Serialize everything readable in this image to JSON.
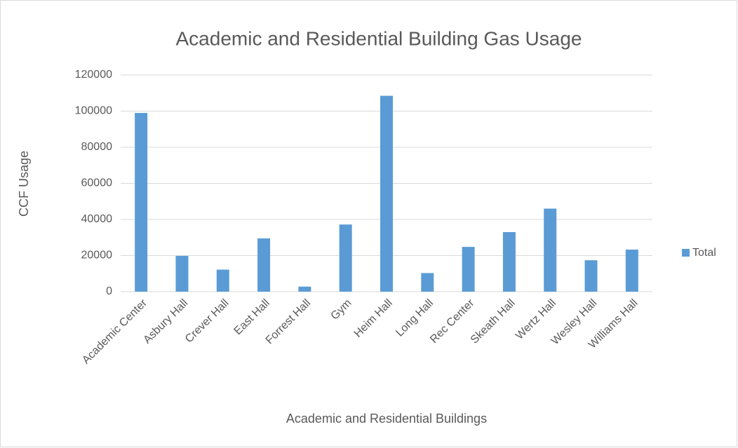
{
  "chart_data": {
    "type": "bar",
    "title": "Academic and Residential Building Gas Usage",
    "x_label": "Academic and Residential Buildings",
    "y_label": "CCF Usage",
    "categories": [
      "Academic Center",
      "Asbury Hall",
      "Crever Hall",
      "East Hall",
      "Forrest Hall",
      "Gym",
      "Heim Hall",
      "Long Hall",
      "Rec Center",
      "Skeath Hall",
      "Wertz Hall",
      "Wesley Hall",
      "Williams Hall"
    ],
    "series": [
      {
        "name": "Total",
        "color": "#5b9bd5",
        "values": [
          99000,
          19800,
          12200,
          29500,
          2800,
          37200,
          108500,
          10300,
          24800,
          33000,
          46000,
          17400,
          23300
        ]
      }
    ],
    "ylim": [
      0,
      120000
    ],
    "yticks": [
      0,
      20000,
      40000,
      60000,
      80000,
      100000,
      120000
    ],
    "grid": true,
    "legend": "right"
  }
}
